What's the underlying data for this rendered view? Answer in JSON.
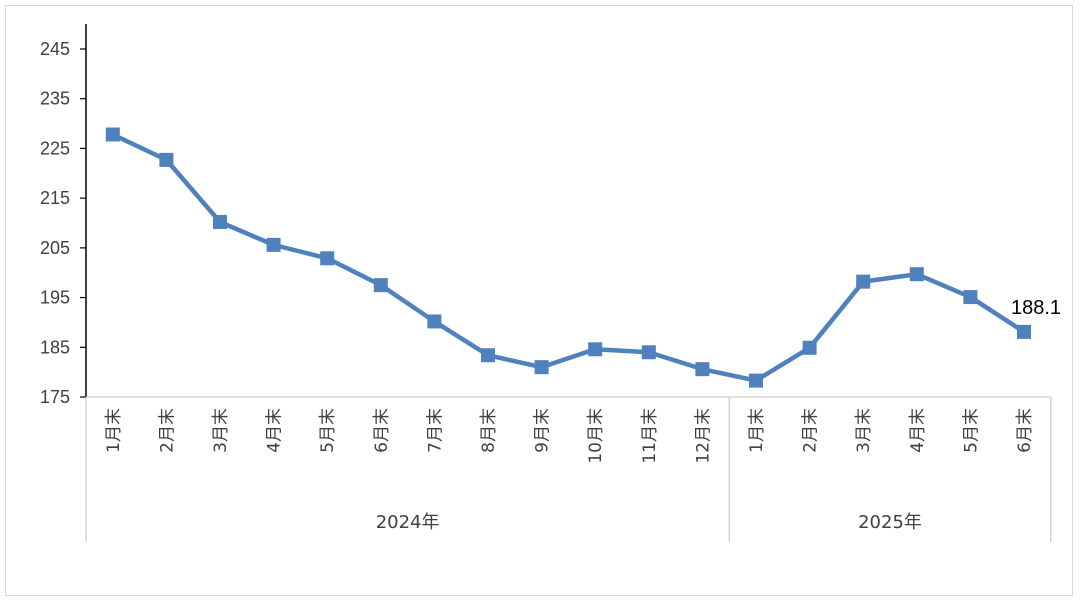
{
  "chart_data": {
    "type": "line",
    "title": "",
    "xlabel": "",
    "ylabel": "",
    "ylim": [
      175,
      250
    ],
    "yticks": [
      175,
      185,
      195,
      205,
      215,
      225,
      235,
      245
    ],
    "grid": false,
    "legend": "none",
    "categories": [
      "1月末",
      "2月末",
      "3月末",
      "4月末",
      "5月末",
      "6月末",
      "7月末",
      "8月末",
      "9月末",
      "10月末",
      "11月末",
      "12月末",
      "1月末",
      "2月末",
      "3月末",
      "4月末",
      "5月末",
      "6月末"
    ],
    "groups": [
      {
        "label": "2024年",
        "count": 12
      },
      {
        "label": "2025年",
        "count": 6
      }
    ],
    "series": [
      {
        "values": [
          227.8,
          222.7,
          210.2,
          205.6,
          202.9,
          197.5,
          190.2,
          183.4,
          181.0,
          184.6,
          184.0,
          180.6,
          178.3,
          184.9,
          198.2,
          199.7,
          195.1,
          188.1
        ],
        "color": "#4f81bd"
      }
    ],
    "data_labels": [
      {
        "index": 17,
        "text": "188.1"
      }
    ]
  }
}
